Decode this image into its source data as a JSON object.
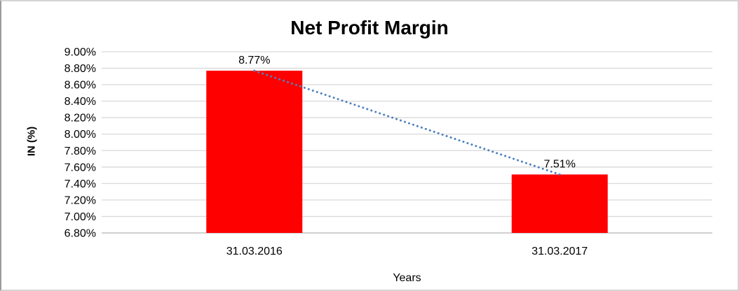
{
  "chart_data": {
    "type": "bar",
    "title": "Net Profit Margin",
    "xlabel": "Years",
    "ylabel": "IN (%)",
    "categories": [
      "31.03.2016",
      "31.03.2017"
    ],
    "values": [
      8.77,
      7.51
    ],
    "value_labels": [
      "8.77%",
      "7.51%"
    ],
    "unit": "%",
    "ylim": [
      6.8,
      9.0
    ],
    "ytick_step": 0.2,
    "yticks": [
      "9.00%",
      "8.80%",
      "8.60%",
      "8.40%",
      "8.20%",
      "8.00%",
      "7.80%",
      "7.60%",
      "7.40%",
      "7.20%",
      "7.00%",
      "6.80%"
    ],
    "grid": true,
    "legend": "none",
    "trendline": {
      "style": "dotted",
      "from_value": 8.77,
      "to_value": 7.51
    },
    "colors": {
      "bar": "#ff0000",
      "trendline": "#4f81bd",
      "gridline": "#d9d9d9",
      "axis_line": "#b3b3b3",
      "text": "#000000"
    }
  }
}
